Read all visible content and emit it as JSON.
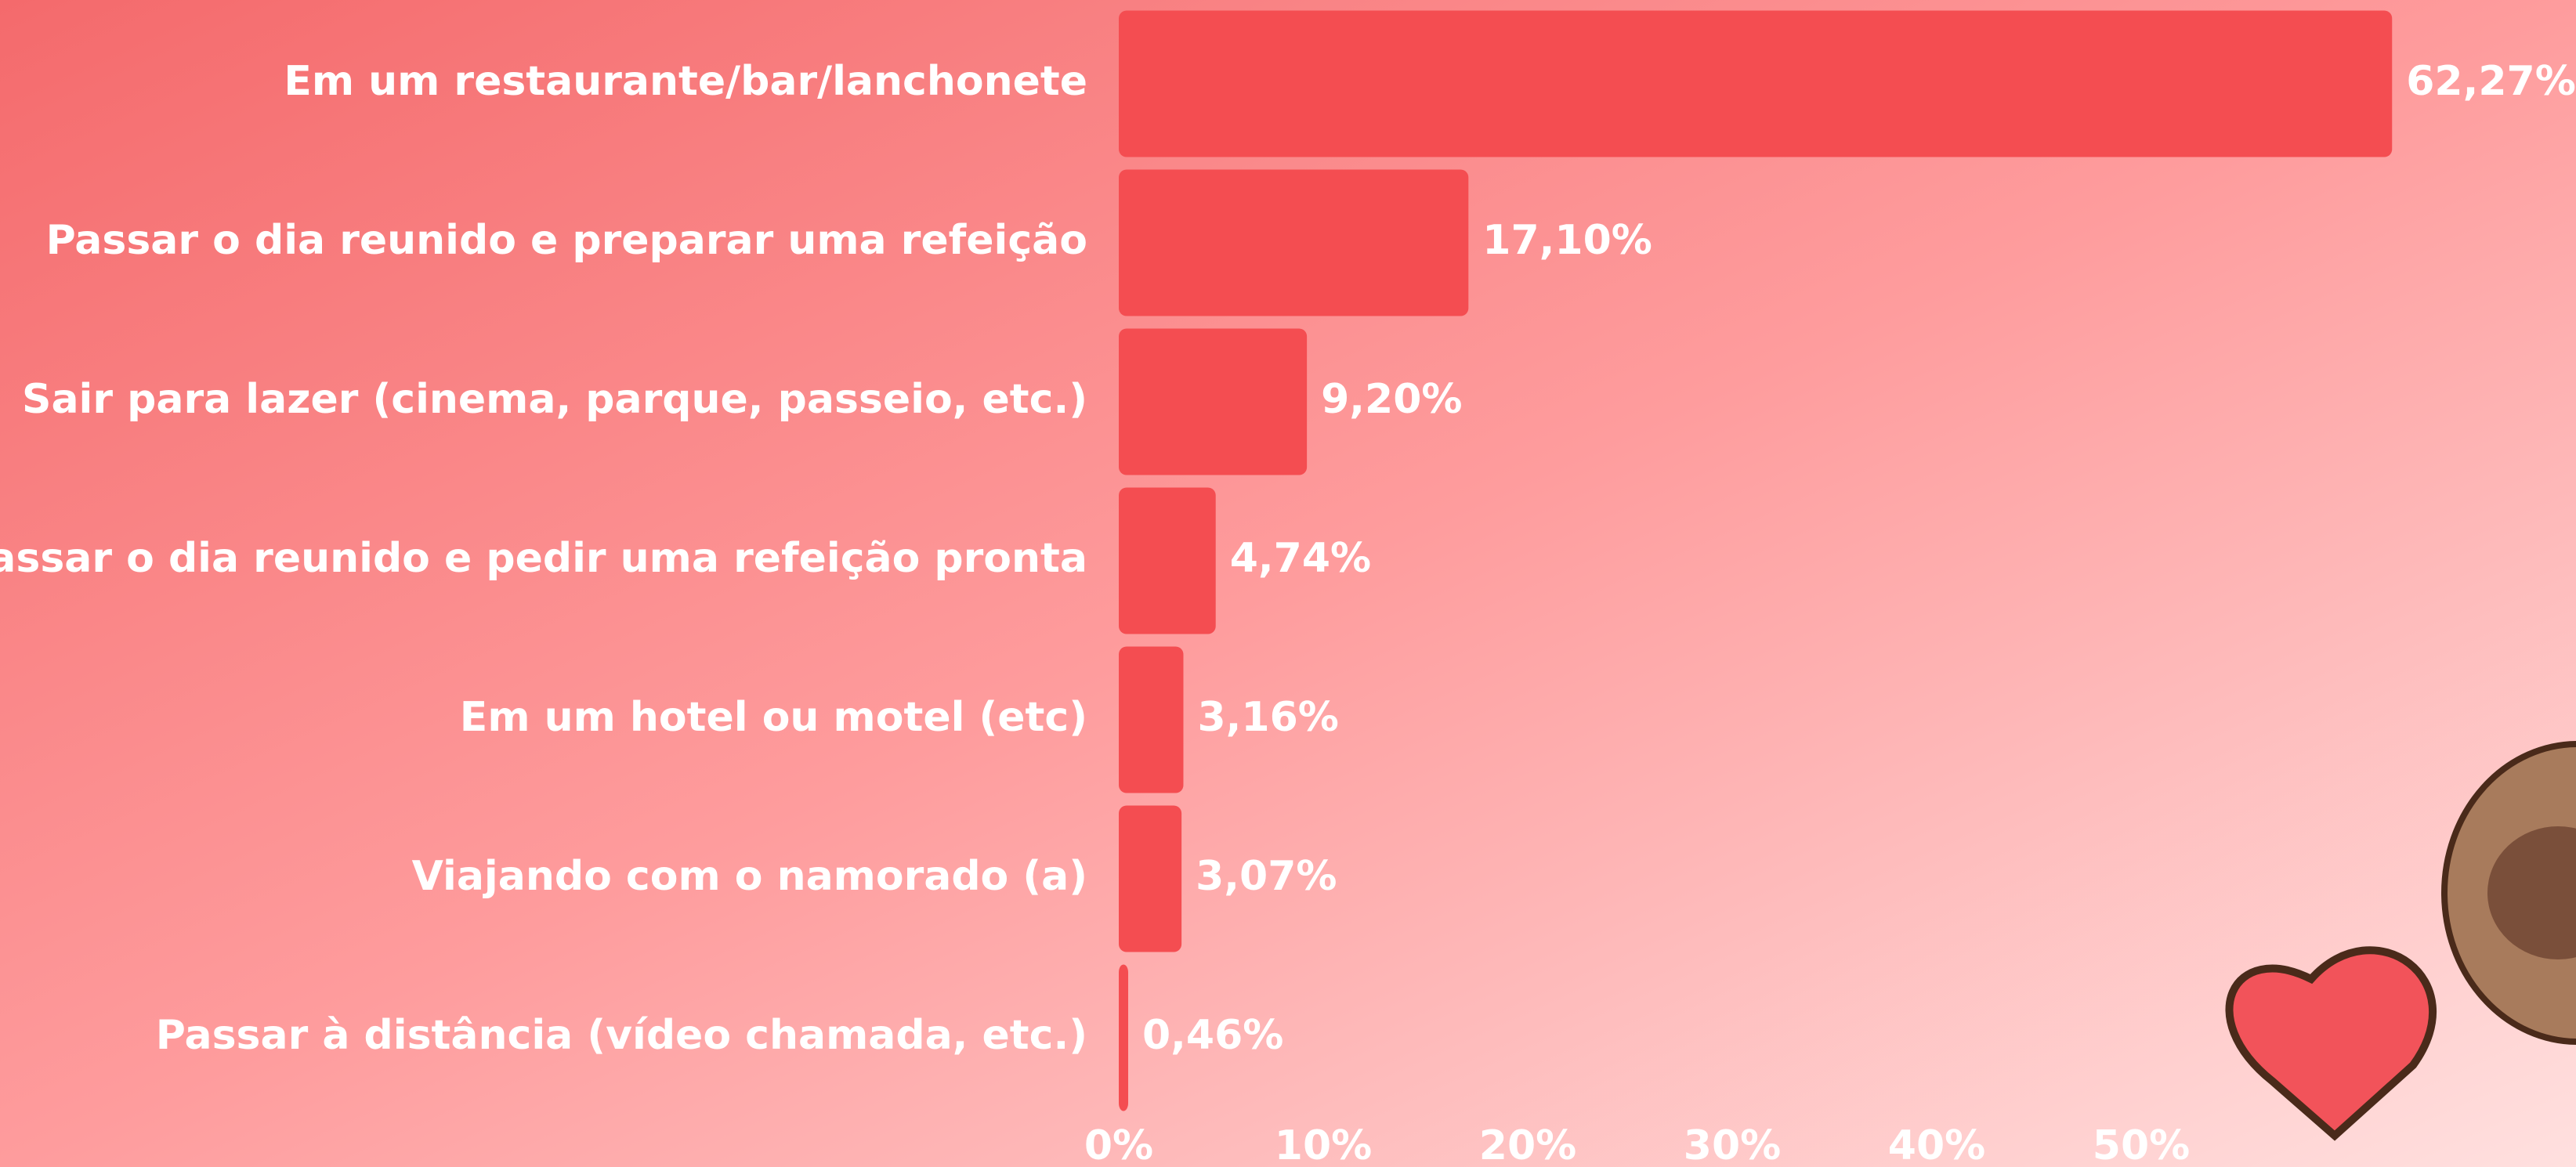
{
  "chart_data": {
    "type": "bar",
    "orientation": "horizontal",
    "categories": [
      "Em um restaurante/bar/lanchonete",
      "Passar o dia reunido e preparar uma refeição",
      "Sair para lazer (cinema, parque, passeio, etc.)",
      "passar o dia reunido e pedir uma refeição pronta",
      "Em um hotel ou motel (etc)",
      "Viajando com o namorado (a)",
      "Passar à distância (vídeo chamada, etc.)"
    ],
    "values": [
      62.27,
      17.1,
      9.2,
      4.74,
      3.16,
      3.07,
      0.46
    ],
    "value_labels": [
      "62,27%",
      "17,10%",
      "9,20%",
      "4,74%",
      "3,16%",
      "3,07%",
      "0,46%"
    ],
    "color": "#f44d51",
    "xlim": [
      0,
      70
    ],
    "xticks": [
      {
        "value": 0,
        "label": "0%"
      },
      {
        "value": 10,
        "label": "10%"
      },
      {
        "value": 20,
        "label": "20%"
      },
      {
        "value": 30,
        "label": "30%"
      },
      {
        "value": 40,
        "label": "40%"
      },
      {
        "value": 50,
        "label": "50%"
      }
    ],
    "grid": false
  }
}
